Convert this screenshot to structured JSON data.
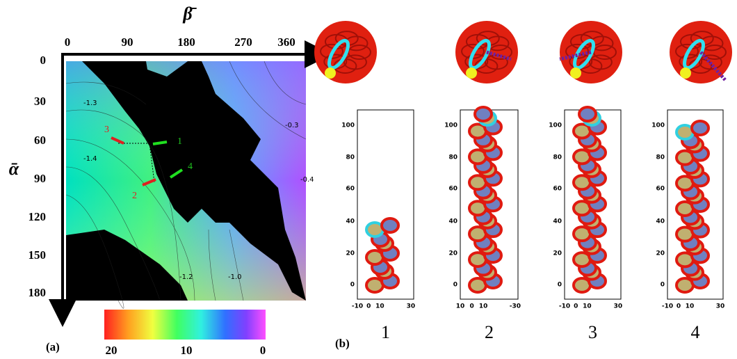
{
  "figure": {
    "panel_a": {
      "label": "(a)",
      "x_axis_label": "β̄",
      "y_axis_label": "ᾱ",
      "x_ticks": [
        "0",
        "90",
        "180",
        "270",
        "360"
      ],
      "y_ticks": [
        "0",
        "30",
        "60",
        "90",
        "120",
        "150",
        "180"
      ],
      "contour_labels": [
        "-1.3",
        "-1.4",
        "-0.3",
        "-0.4",
        "-1.2",
        "-1.0"
      ],
      "arrow_labels": [
        "1",
        "2",
        "3",
        "4"
      ],
      "colorbar_ticks": [
        "20",
        "10",
        "0"
      ]
    },
    "panel_b": {
      "label": "(b)",
      "plots": [
        {
          "number": "1",
          "y_ticks": [
            "100",
            "80",
            "60",
            "40",
            "20",
            "0"
          ],
          "x_ticks": [
            "-10",
            "0",
            "10",
            "30"
          ]
        },
        {
          "number": "2",
          "y_ticks": [
            "100",
            "80",
            "60",
            "40",
            "20",
            "0"
          ],
          "x_ticks": [
            "10",
            "0",
            "10",
            "-30"
          ]
        },
        {
          "number": "3",
          "y_ticks": [
            "100",
            "80",
            "60",
            "40",
            "20",
            "0"
          ],
          "x_ticks": [
            "-10",
            "0",
            "10",
            "30"
          ]
        },
        {
          "number": "4",
          "y_ticks": [
            "100",
            "80",
            "60",
            "40",
            "20",
            "0"
          ],
          "x_ticks": [
            "-10",
            "0",
            "10",
            "30"
          ]
        }
      ]
    }
  }
}
